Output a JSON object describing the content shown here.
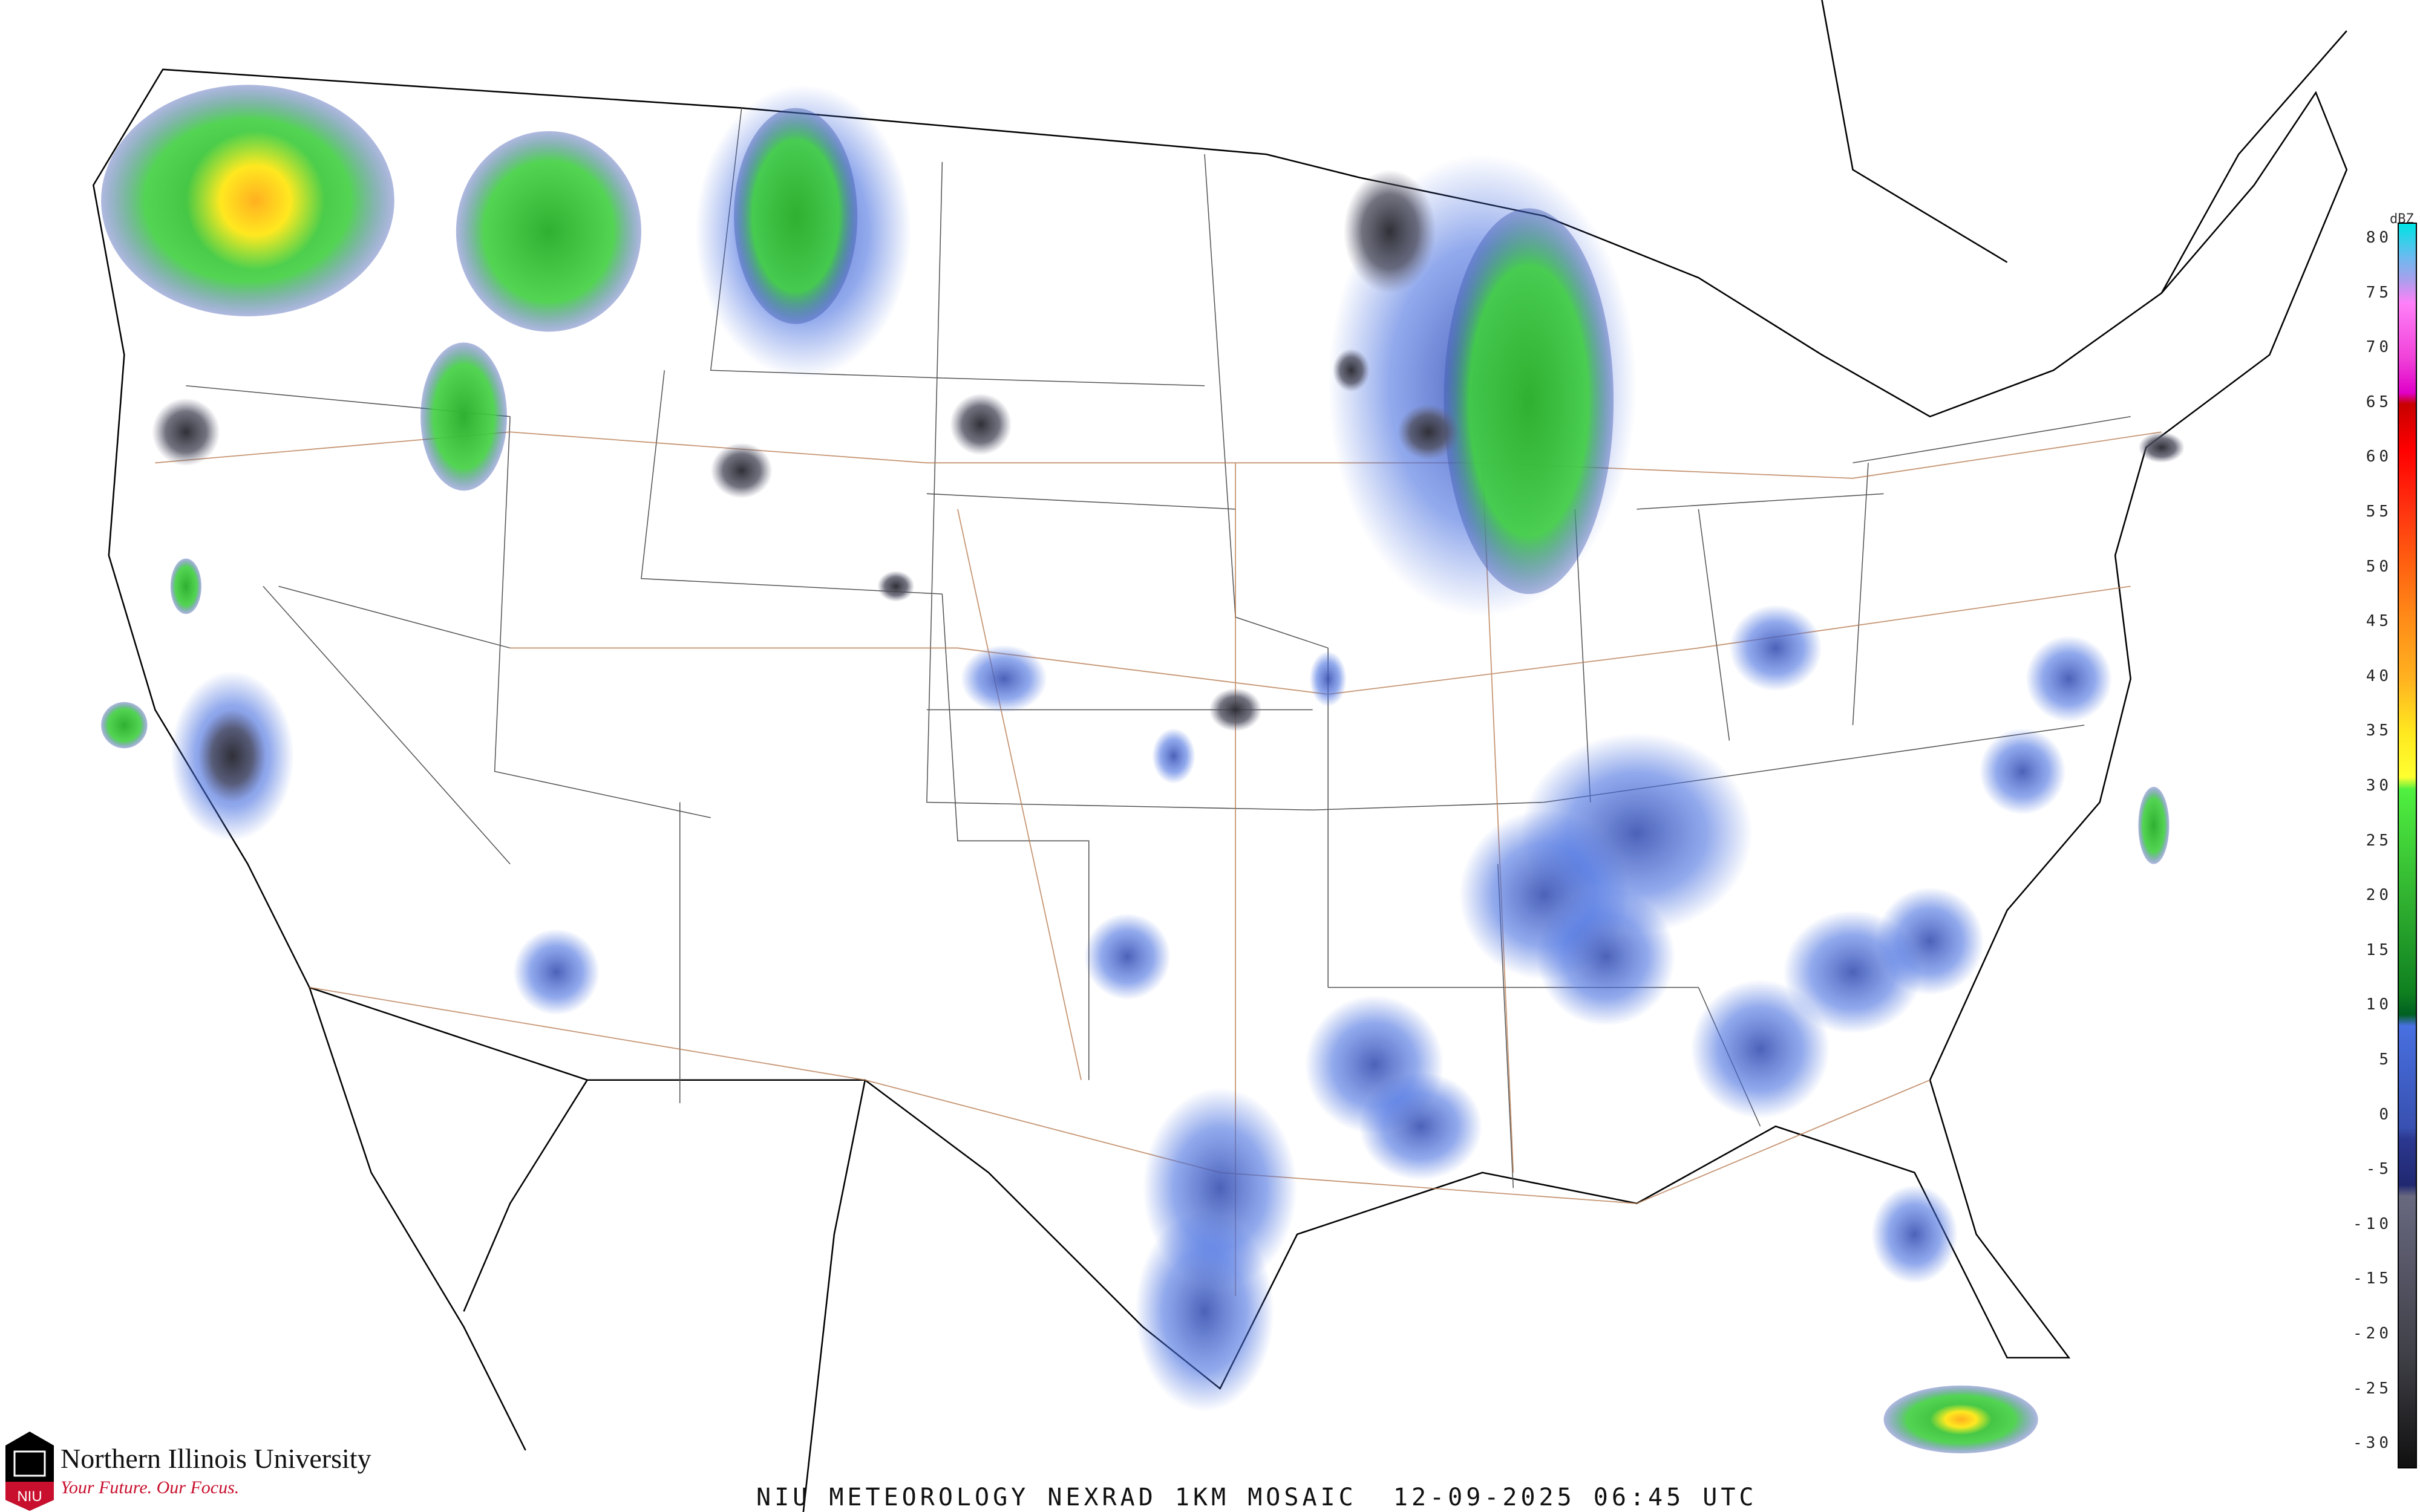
{
  "map": {
    "title": "NIU METEOROLOGY NEXRAD 1KM MOSAIC  12-09-2025 06:45 UTC",
    "product": "NEXRAD 1KM MOSAIC",
    "date": "12-09-2025",
    "time": "06:45 UTC",
    "region": "Contiguous United States"
  },
  "legend": {
    "unit": "dBZ",
    "labels": [
      "80",
      "75",
      "70",
      "65",
      "60",
      "55",
      "50",
      "45",
      "40",
      "35",
      "30",
      "25",
      "20",
      "15",
      "10",
      "5",
      "0",
      "-5",
      "-10",
      "-15",
      "-20",
      "-25",
      "-30"
    ],
    "color_stops": [
      {
        "dbz": 80,
        "color": "#00e4e4"
      },
      {
        "dbz": 77,
        "color": "#6cbaf0"
      },
      {
        "dbz": 75,
        "color": "#a8a0ec"
      },
      {
        "dbz": 73,
        "color": "#ff80f8"
      },
      {
        "dbz": 68,
        "color": "#f040d8"
      },
      {
        "dbz": 65,
        "color": "#e000c8"
      },
      {
        "dbz": 64,
        "color": "#c80000"
      },
      {
        "dbz": 60,
        "color": "#ff0000"
      },
      {
        "dbz": 55,
        "color": "#ff3010"
      },
      {
        "dbz": 50,
        "color": "#ff6010"
      },
      {
        "dbz": 45,
        "color": "#ff8c18"
      },
      {
        "dbz": 40,
        "color": "#ffb020"
      },
      {
        "dbz": 35,
        "color": "#ffe820"
      },
      {
        "dbz": 31,
        "color": "#ffff30"
      },
      {
        "dbz": 30,
        "color": "#50f040"
      },
      {
        "dbz": 20,
        "color": "#30b030"
      },
      {
        "dbz": 12,
        "color": "#108020"
      },
      {
        "dbz": 10,
        "color": "#006020"
      },
      {
        "dbz": 9,
        "color": "#4870e0"
      },
      {
        "dbz": 0,
        "color": "#3850b0"
      },
      {
        "dbz": -1,
        "color": "#2c3890"
      },
      {
        "dbz": -5,
        "color": "#202870"
      },
      {
        "dbz": -6,
        "color": "#686880"
      },
      {
        "dbz": -20,
        "color": "#404048"
      },
      {
        "dbz": -30,
        "color": "#101010"
      }
    ]
  },
  "branding": {
    "name": "Northern Illinois University",
    "tagline": "Your Future. Our Focus.",
    "logo_text": "NIU",
    "colors": {
      "black": "#000000",
      "red": "#c8102e"
    }
  }
}
